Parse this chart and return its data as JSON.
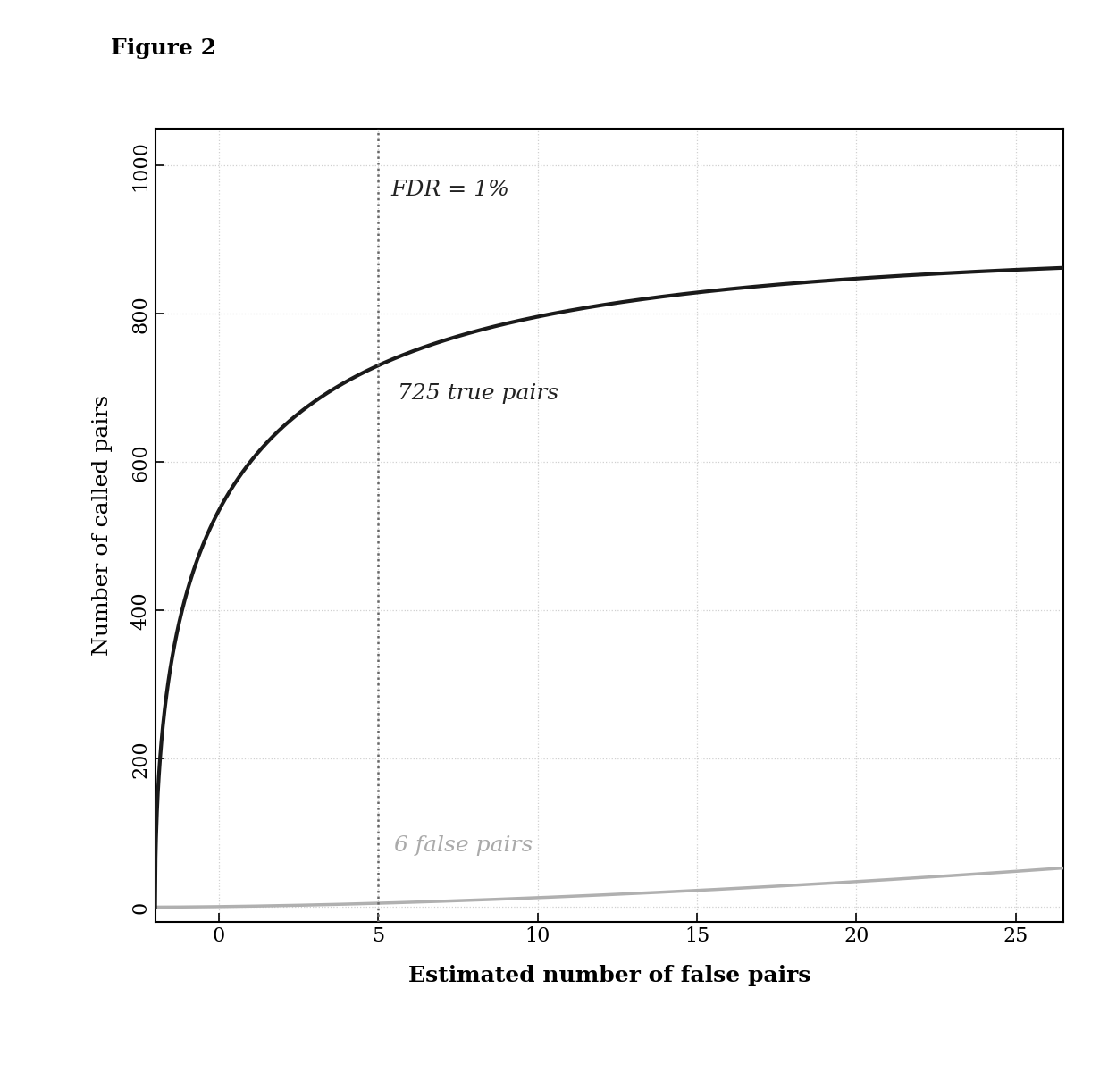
{
  "title": "Figure 2",
  "xlabel": "Estimated number of false pairs",
  "ylabel": "Number of called pairs",
  "xlim": [
    -2,
    26.5
  ],
  "ylim": [
    -20,
    1050
  ],
  "xticks": [
    0,
    5,
    10,
    15,
    20,
    25
  ],
  "yticks": [
    0,
    200,
    400,
    600,
    800,
    1000
  ],
  "vline_x": 5,
  "fdr_label": "FDR = 1%",
  "true_pairs_label": "725 true pairs",
  "false_pairs_label": "6 false pairs",
  "true_curve_color": "#1a1a1a",
  "false_curve_color": "#b0b0b0",
  "vline_color": "#666666",
  "grid_color": "#d0d0d0",
  "background_color": "#ffffff",
  "annotation_color_dark": "#222222",
  "annotation_color_gray": "#aaaaaa",
  "title_fontsize": 18,
  "label_fontsize": 18,
  "tick_fontsize": 16,
  "annotation_fontsize": 18
}
